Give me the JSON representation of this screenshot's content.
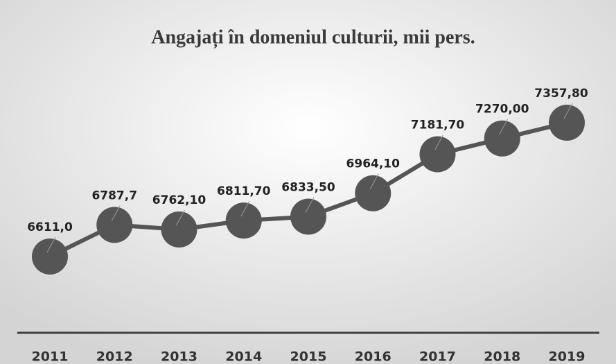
{
  "chart_data": {
    "type": "line",
    "title": "Angajați în domeniul culturii, mii pers.",
    "categories": [
      "2011",
      "2012",
      "2013",
      "2014",
      "2015",
      "2016",
      "2017",
      "2018",
      "2019"
    ],
    "series": [
      {
        "color": "#555555",
        "values": [
          6611.0,
          6787.7,
          6762.1,
          6811.7,
          6833.5,
          6964.1,
          7181.7,
          7270.0,
          7357.8
        ],
        "value_labels": [
          "6611,0",
          "6787,7",
          "6762,10",
          "6811,70",
          "6833,50",
          "6964,10",
          "7181,70",
          "7270,00",
          "7357,80"
        ]
      }
    ]
  }
}
